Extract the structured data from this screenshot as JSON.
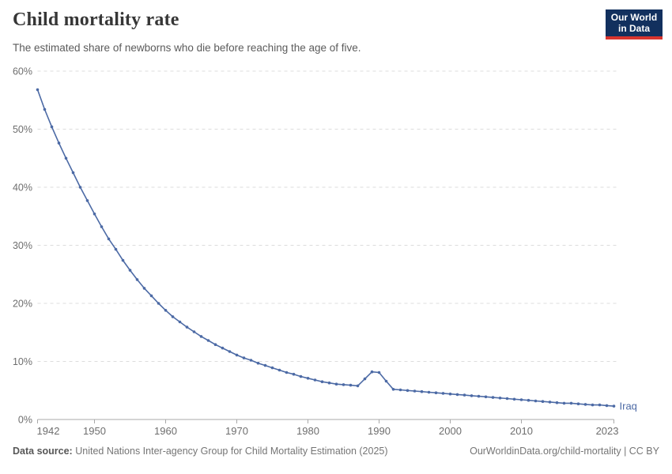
{
  "header": {
    "title": "Child mortality rate",
    "subtitle": "The estimated share of newborns who die before reaching the age of five."
  },
  "logo": {
    "line1": "Our World",
    "line2": "in Data",
    "bg_color": "#12305e",
    "accent_color": "#d8352e",
    "text_color": "#ffffff"
  },
  "chart_data": {
    "type": "line",
    "title": "Child mortality rate",
    "unit": "%",
    "xlim": [
      1942,
      2023
    ],
    "ylim": [
      0,
      60
    ],
    "grid": "dashed-horizontal",
    "legend_position": "end-of-line",
    "x_ticks": [
      {
        "value": 1942,
        "label": "1942"
      },
      {
        "value": 1950,
        "label": "1950"
      },
      {
        "value": 1960,
        "label": "1960"
      },
      {
        "value": 1970,
        "label": "1970"
      },
      {
        "value": 1980,
        "label": "1980"
      },
      {
        "value": 1990,
        "label": "1990"
      },
      {
        "value": 2000,
        "label": "2000"
      },
      {
        "value": 2010,
        "label": "2010"
      },
      {
        "value": 2023,
        "label": "2023"
      }
    ],
    "y_ticks": [
      {
        "value": 0,
        "label": "0%"
      },
      {
        "value": 10,
        "label": "10%"
      },
      {
        "value": 20,
        "label": "20%"
      },
      {
        "value": 30,
        "label": "30%"
      },
      {
        "value": 40,
        "label": "40%"
      },
      {
        "value": 50,
        "label": "50%"
      },
      {
        "value": 60,
        "label": "60%"
      }
    ],
    "series": [
      {
        "name": "Iraq",
        "color": "#4c6aa5",
        "x": [
          1942,
          1943,
          1944,
          1945,
          1946,
          1947,
          1948,
          1949,
          1950,
          1951,
          1952,
          1953,
          1954,
          1955,
          1956,
          1957,
          1958,
          1959,
          1960,
          1961,
          1962,
          1963,
          1964,
          1965,
          1966,
          1967,
          1968,
          1969,
          1970,
          1971,
          1972,
          1973,
          1974,
          1975,
          1976,
          1977,
          1978,
          1979,
          1980,
          1981,
          1982,
          1983,
          1984,
          1985,
          1986,
          1987,
          1988,
          1989,
          1990,
          1991,
          1992,
          1993,
          1994,
          1995,
          1996,
          1997,
          1998,
          1999,
          2000,
          2001,
          2002,
          2003,
          2004,
          2005,
          2006,
          2007,
          2008,
          2009,
          2010,
          2011,
          2012,
          2013,
          2014,
          2015,
          2016,
          2017,
          2018,
          2019,
          2020,
          2021,
          2022,
          2023
        ],
        "values": [
          56.8,
          53.4,
          50.4,
          47.6,
          45.0,
          42.5,
          40.0,
          37.7,
          35.4,
          33.2,
          31.1,
          29.3,
          27.4,
          25.7,
          24.1,
          22.6,
          21.3,
          20.0,
          18.8,
          17.7,
          16.8,
          15.9,
          15.1,
          14.3,
          13.6,
          12.9,
          12.3,
          11.7,
          11.1,
          10.6,
          10.2,
          9.7,
          9.3,
          8.9,
          8.5,
          8.1,
          7.8,
          7.4,
          7.1,
          6.8,
          6.5,
          6.3,
          6.1,
          6.0,
          5.9,
          5.8,
          7.0,
          8.2,
          8.1,
          6.6,
          5.2,
          5.1,
          5.0,
          4.9,
          4.8,
          4.7,
          4.6,
          4.5,
          4.4,
          4.3,
          4.2,
          4.1,
          4.0,
          3.9,
          3.8,
          3.7,
          3.6,
          3.5,
          3.4,
          3.3,
          3.2,
          3.1,
          3.0,
          2.9,
          2.8,
          2.8,
          2.7,
          2.6,
          2.5,
          2.5,
          2.4,
          2.3
        ]
      }
    ],
    "colors": {
      "gridline": "#dcdcdc",
      "axis_line": "#a8a8a8",
      "tick_label": "#6e6e6e"
    }
  },
  "footer": {
    "data_source_label": "Data source:",
    "data_source_text": "United Nations Inter-agency Group for Child Mortality Estimation (2025)",
    "right_text": "OurWorldinData.org/child-mortality | CC BY"
  }
}
